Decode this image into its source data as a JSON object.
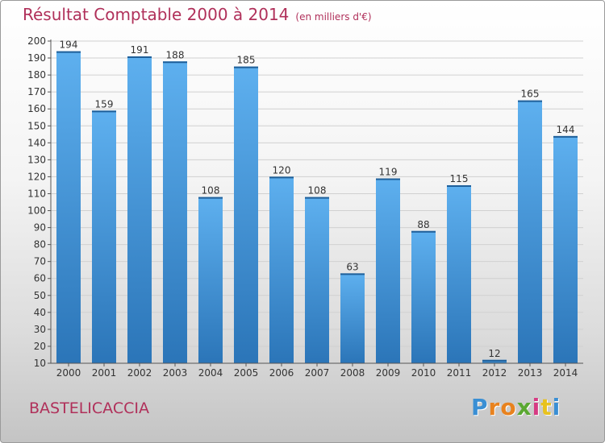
{
  "header": {
    "title": "Résultat Comptable 2000 à 2014",
    "subtitle": "(en milliers d'€)"
  },
  "footer": {
    "commune": "BASTELICACCIA",
    "logo_letters": [
      "P",
      "r",
      "o",
      "x",
      "i",
      "t",
      "i"
    ],
    "logo_colors": [
      "#3a8fd4",
      "#e8821e",
      "#e8821e",
      "#5aa832",
      "#d63b83",
      "#e8c21e",
      "#3a8fd4"
    ]
  },
  "colors": {
    "title": "#b0305a",
    "bar_light": "#5eb0ef",
    "bar_dark": "#2b75b8",
    "grid": "#d0d0d0"
  },
  "chart_data": {
    "type": "bar",
    "title": "Résultat Comptable 2000 à 2014",
    "subtitle": "(en milliers d'€)",
    "xlabel": "",
    "ylabel": "",
    "categories": [
      "2000",
      "2001",
      "2002",
      "2003",
      "2004",
      "2005",
      "2006",
      "2007",
      "2008",
      "2009",
      "2010",
      "2011",
      "2012",
      "2013",
      "2014"
    ],
    "values": [
      194,
      159,
      191,
      188,
      108,
      185,
      120,
      108,
      63,
      119,
      88,
      115,
      12,
      165,
      144
    ],
    "ylim": [
      10,
      200
    ],
    "yticks": [
      10,
      20,
      30,
      40,
      50,
      60,
      70,
      80,
      90,
      100,
      110,
      120,
      130,
      140,
      150,
      160,
      170,
      180,
      190,
      200
    ],
    "grid": true
  }
}
